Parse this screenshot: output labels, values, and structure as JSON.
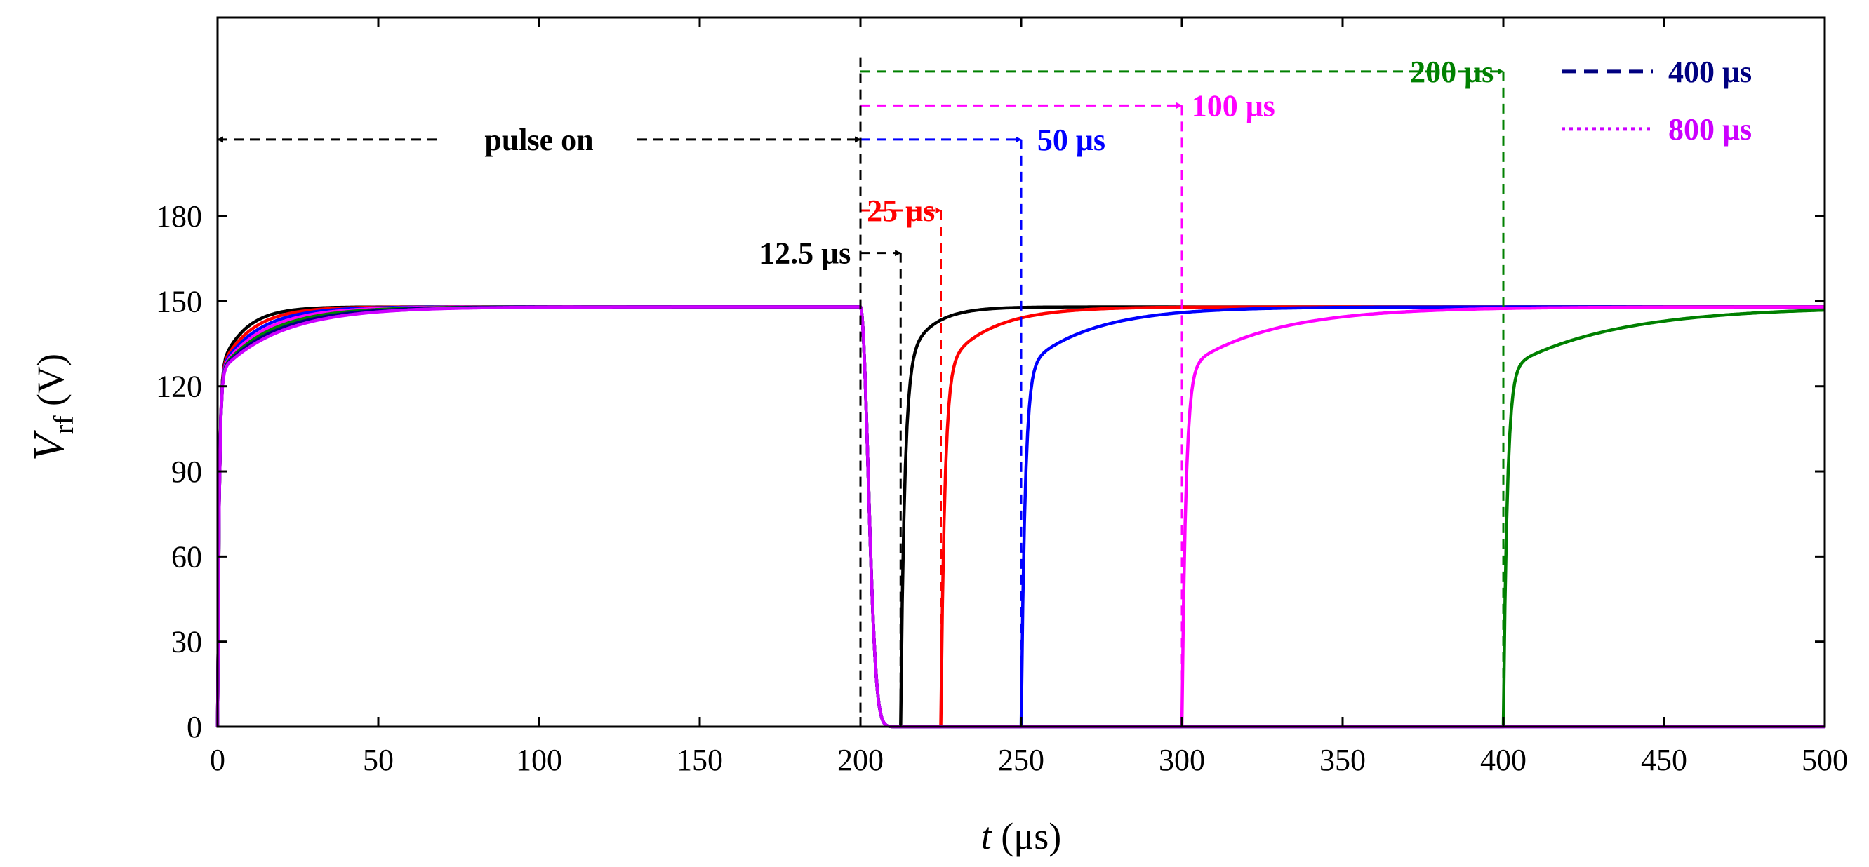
{
  "chart_data": {
    "type": "line",
    "title": "",
    "xlabel": {
      "var": "t",
      "unit": " (μs)"
    },
    "ylabel": {
      "var": "V",
      "sub": "rf",
      "unit": " (V)"
    },
    "xlim": [
      0,
      500
    ],
    "ylim": [
      0,
      250
    ],
    "xticks": [
      0,
      50,
      100,
      150,
      200,
      250,
      300,
      350,
      400,
      450,
      500
    ],
    "yticks": [
      0,
      30,
      60,
      90,
      120,
      150,
      180
    ],
    "grid": false,
    "legend_position": "top-right",
    "pulse_on_end_us": 200,
    "steady_voltage_V": 148,
    "series": [
      {
        "name": "12.5 μs",
        "color": "#000000",
        "off_us": 12.5
      },
      {
        "name": "25 μs",
        "color": "#ff0000",
        "off_us": 25
      },
      {
        "name": "50 μs",
        "color": "#0000ff",
        "off_us": 50
      },
      {
        "name": "100 μs",
        "color": "#ff00ff",
        "off_us": 100
      },
      {
        "name": "200 μs",
        "color": "#008000",
        "off_us": 200
      },
      {
        "name": "400 μs",
        "color": "#000080",
        "off_us": 400
      },
      {
        "name": "800 μs",
        "color": "#cc00ff",
        "off_us": 800
      }
    ],
    "legend": [
      {
        "label": "400 μs",
        "color": "#000080",
        "dash": "dash"
      },
      {
        "label": "800 μs",
        "color": "#cc00ff",
        "dash": "dot"
      }
    ],
    "annotations": [
      {
        "text": "pulse on",
        "color": "#000000",
        "x_start": 0,
        "x_end": 200,
        "y": 207,
        "label_x": 100,
        "label_anchor": "middle"
      },
      {
        "text": "12.5 μs",
        "color": "#000000",
        "x_start": 200,
        "x_end": 212.5,
        "y": 167,
        "label_x": 197,
        "label_anchor": "end"
      },
      {
        "text": "25 μs",
        "color": "#ff0000",
        "x_start": 200,
        "x_end": 225,
        "y": 182,
        "label_x": 202,
        "label_anchor": "start"
      },
      {
        "text": "50 μs",
        "color": "#0000ff",
        "x_start": 200,
        "x_end": 250,
        "y": 207,
        "label_x": 255,
        "label_anchor": "start"
      },
      {
        "text": "100 μs",
        "color": "#ff00ff",
        "x_start": 200,
        "x_end": 300,
        "y": 219,
        "label_x": 303,
        "label_anchor": "start"
      },
      {
        "text": "200 μs",
        "color": "#008000",
        "x_start": 200,
        "x_end": 400,
        "y": 231,
        "label_x": 397,
        "label_anchor": "end"
      }
    ]
  }
}
